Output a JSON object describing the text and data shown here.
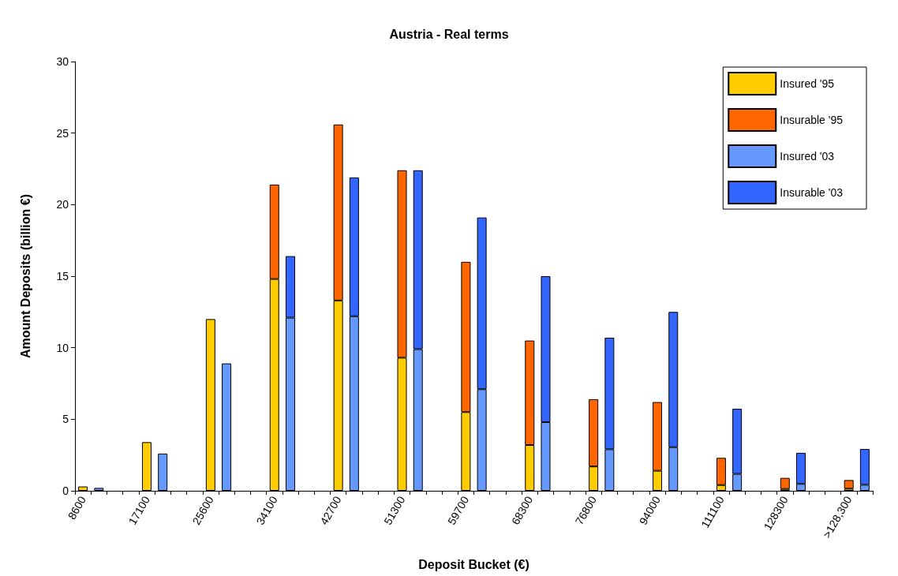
{
  "chart_data": {
    "type": "bar",
    "title": "Austria - Real terms",
    "xlabel": "Deposit Bucket (€)",
    "ylabel": "Amount Deposits (billion €)",
    "categories": [
      "8600",
      null,
      null,
      null,
      "17100",
      null,
      null,
      null,
      "25600",
      null,
      null,
      null,
      "34100",
      null,
      null,
      null,
      "42700",
      null,
      null,
      null,
      "51300",
      null,
      null,
      null,
      "59700",
      null,
      null,
      null,
      "68300",
      null,
      null,
      null,
      "76800",
      null,
      null,
      null,
      "94000",
      null,
      null,
      null,
      "111100",
      null,
      null,
      null,
      "128300",
      null,
      null,
      null,
      ">128,300",
      null
    ],
    "stacked": true,
    "ylim": [
      0,
      30
    ],
    "yticks": [
      0,
      5,
      10,
      15,
      20,
      25,
      30
    ],
    "grid": false,
    "legend": "top right",
    "series": [
      {
        "name": "Insured '95",
        "color": "#ffcc00",
        "values": [
          0.3,
          null,
          null,
          null,
          3.4,
          null,
          null,
          null,
          12.0,
          null,
          null,
          null,
          14.8,
          null,
          null,
          null,
          13.3,
          null,
          null,
          null,
          9.3,
          null,
          null,
          null,
          5.5,
          null,
          null,
          null,
          3.2,
          null,
          null,
          null,
          1.7,
          null,
          null,
          null,
          1.4,
          null,
          null,
          null,
          0.4,
          null,
          null,
          null,
          0.13,
          null,
          null,
          null,
          0.15,
          null
        ]
      },
      {
        "name": "Insurable '95",
        "color": "#ff6600",
        "values": [
          null,
          null,
          null,
          null,
          null,
          null,
          null,
          null,
          null,
          null,
          null,
          null,
          6.6,
          null,
          null,
          null,
          12.3,
          null,
          null,
          null,
          13.1,
          null,
          null,
          null,
          10.5,
          null,
          null,
          null,
          7.3,
          null,
          null,
          null,
          4.7,
          null,
          null,
          null,
          4.8,
          null,
          null,
          null,
          1.9,
          null,
          null,
          null,
          0.77,
          null,
          null,
          null,
          0.6,
          null
        ]
      },
      {
        "name": "Insured '03",
        "color": "#6699ff",
        "values": [
          null,
          0.2,
          null,
          null,
          null,
          2.6,
          null,
          null,
          null,
          8.9,
          null,
          null,
          null,
          12.1,
          null,
          null,
          null,
          12.2,
          null,
          null,
          null,
          9.9,
          null,
          null,
          null,
          7.1,
          null,
          null,
          null,
          4.8,
          null,
          null,
          null,
          2.9,
          null,
          null,
          null,
          3.05,
          null,
          null,
          null,
          1.18,
          null,
          null,
          null,
          0.48,
          null,
          null,
          null,
          0.42
        ]
      },
      {
        "name": "Insurable '03",
        "color": "#3366ff",
        "values": [
          null,
          null,
          null,
          null,
          null,
          null,
          null,
          null,
          null,
          null,
          null,
          null,
          null,
          4.3,
          null,
          null,
          null,
          9.7,
          null,
          null,
          null,
          12.5,
          null,
          null,
          null,
          12.0,
          null,
          null,
          null,
          10.2,
          null,
          null,
          null,
          7.8,
          null,
          null,
          null,
          9.45,
          null,
          null,
          null,
          4.55,
          null,
          null,
          null,
          2.17,
          null,
          null,
          null,
          2.5
        ]
      }
    ]
  }
}
